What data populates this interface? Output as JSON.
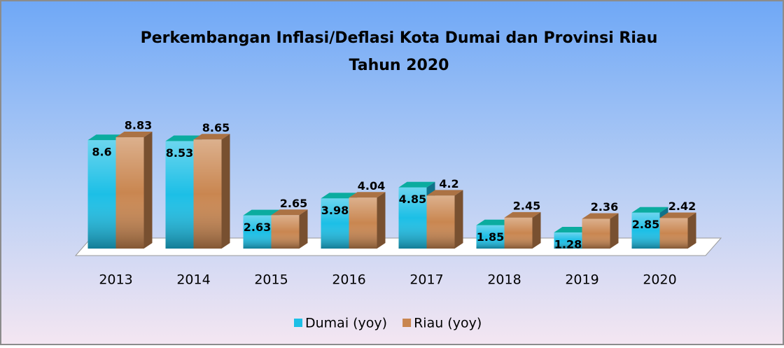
{
  "chart_data": {
    "type": "bar3d",
    "title": "Perkembangan Inflasi/Deflasi Kota  Dumai dan Provinsi Riau",
    "subtitle": "Tahun 2020",
    "categories": [
      "2013",
      "2014",
      "2015",
      "2016",
      "2017",
      "2018",
      "2019",
      "2020"
    ],
    "series": [
      {
        "name": "Dumai (yoy)",
        "color": "#1cbfe6",
        "values": [
          8.6,
          8.53,
          2.63,
          3.98,
          4.85,
          1.85,
          1.28,
          2.85
        ]
      },
      {
        "name": "Riau (yoy)",
        "color": "#c98650",
        "values": [
          8.83,
          8.65,
          2.65,
          4.04,
          4.2,
          2.45,
          2.36,
          2.42
        ]
      }
    ],
    "ylim": [
      0,
      10
    ],
    "legend": "bottom"
  }
}
